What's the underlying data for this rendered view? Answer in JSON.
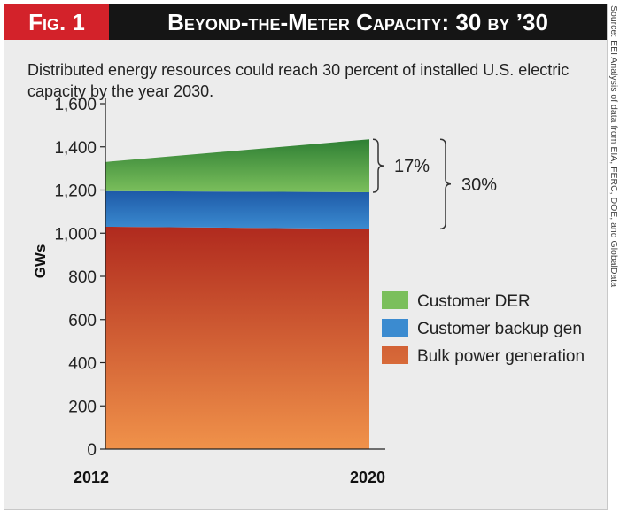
{
  "figure": {
    "tag": "Fig. 1",
    "title": "Beyond-the-Meter Capacity: 30 by ’30",
    "subtitle": "Distributed energy resources could reach 30 percent of installed U.S. electric capacity by the year 2030.",
    "source": "Source: EEI Analysis of data from EIA, FERC, DOE, and GlobalData"
  },
  "colors": {
    "tag_bg": "#d3222a",
    "title_bg": "#151515",
    "der_top": "#2e7f34",
    "der_bottom": "#7bbf5c",
    "backup_top": "#1e5aa8",
    "backup_bottom": "#3b8bd0",
    "bulk_top": "#b02a1e",
    "bulk_bottom": "#f0924a"
  },
  "chart_data": {
    "type": "area",
    "x": [
      "2012",
      "2020"
    ],
    "ylabel": "GWs",
    "ylim": [
      0,
      1600
    ],
    "yticks": [
      "0",
      "200",
      "400",
      "600",
      "800",
      "1,000",
      "1,200",
      "1,400",
      "1,600"
    ],
    "ytick_values": [
      0,
      200,
      400,
      600,
      800,
      1000,
      1200,
      1400,
      1600
    ],
    "stacked": true,
    "series": [
      {
        "name": "Bulk power generation",
        "values": [
          1030,
          1020
        ],
        "color_key": "bulk"
      },
      {
        "name": "Customer backup gen",
        "values": [
          165,
          170
        ],
        "color_key": "backup"
      },
      {
        "name": "Customer DER",
        "values": [
          135,
          245
        ],
        "color_key": "der"
      }
    ],
    "legend_order": [
      "Customer DER",
      "Customer backup gen",
      "Bulk power generation"
    ],
    "legend_position": "right",
    "annotations": [
      {
        "label": "17%",
        "from": 1190,
        "to": 1435
      },
      {
        "label": "30%",
        "from": 1020,
        "to": 1435
      }
    ]
  }
}
